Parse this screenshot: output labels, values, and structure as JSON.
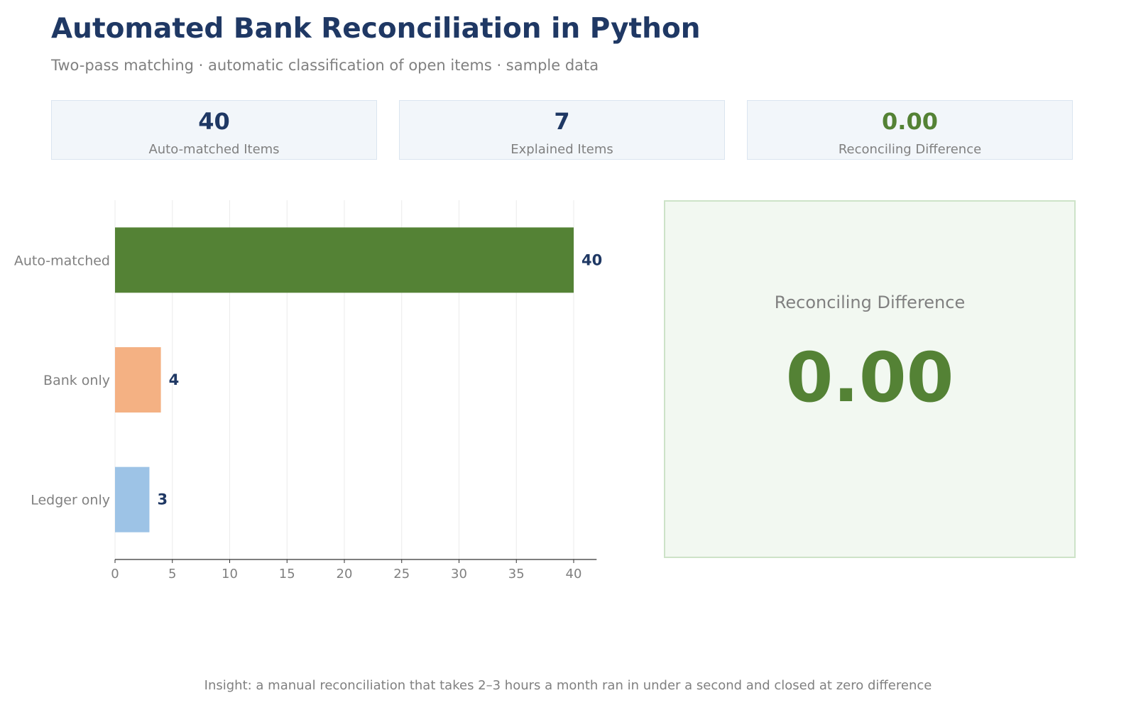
{
  "header": {
    "title": "Automated Bank Reconciliation in Python",
    "subtitle": "Two-pass matching · automatic classification of open items · sample data"
  },
  "kpis": [
    {
      "value": "40",
      "label": "Auto-matched Items",
      "color": "#1f3864"
    },
    {
      "value": "7",
      "label": "Explained Items",
      "color": "#1f3864"
    },
    {
      "value": "0.00",
      "label": "Reconciling Difference",
      "color": "#548235"
    }
  ],
  "panel": {
    "label": "Reconciling Difference",
    "value": "0.00"
  },
  "insight": "Insight: a manual reconciliation that takes 2–3 hours a month ran in under a second and closed at zero difference",
  "chart_data": {
    "type": "bar",
    "orientation": "horizontal",
    "categories": [
      "Auto-matched",
      "Bank only",
      "Ledger only"
    ],
    "values": [
      40,
      4,
      3
    ],
    "colors": [
      "#548235",
      "#f4b183",
      "#9dc3e6"
    ],
    "value_label_color": "#1f3864",
    "xticks": [
      0,
      5,
      10,
      15,
      20,
      25,
      30,
      35,
      40
    ],
    "xlim": [
      0,
      42
    ],
    "grid": true,
    "title": "",
    "xlabel": "",
    "ylabel": ""
  }
}
